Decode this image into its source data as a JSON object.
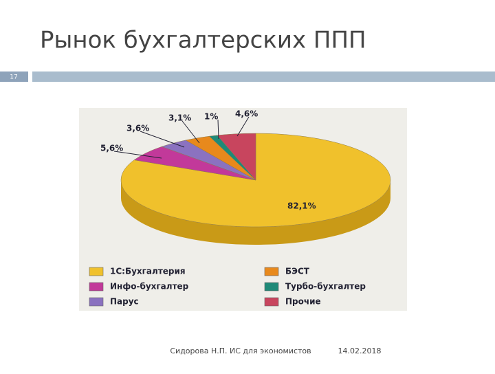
{
  "slide": {
    "number": "17",
    "author": "Сидорова Н.П. ИС для экономистов",
    "date": "14.02.2018"
  },
  "chart_data": {
    "type": "pie",
    "title": "Рынок бухгалтерских ППП",
    "categories": [
      "1С:Бухгалтерия",
      "Инфо-бухгалтер",
      "Парус",
      "БЭСТ",
      "Турбо-бухгалтер",
      "Прочие"
    ],
    "values": [
      82.1,
      5.6,
      3.6,
      3.1,
      1,
      4.6
    ],
    "value_labels": [
      "82,1%",
      "5,6%",
      "3,6%",
      "3,1%",
      "1%",
      "4,6%"
    ],
    "colors": [
      "#f0c12c",
      "#c2399a",
      "#8b72c0",
      "#e8891c",
      "#1f8a78",
      "#c8455e"
    ]
  }
}
